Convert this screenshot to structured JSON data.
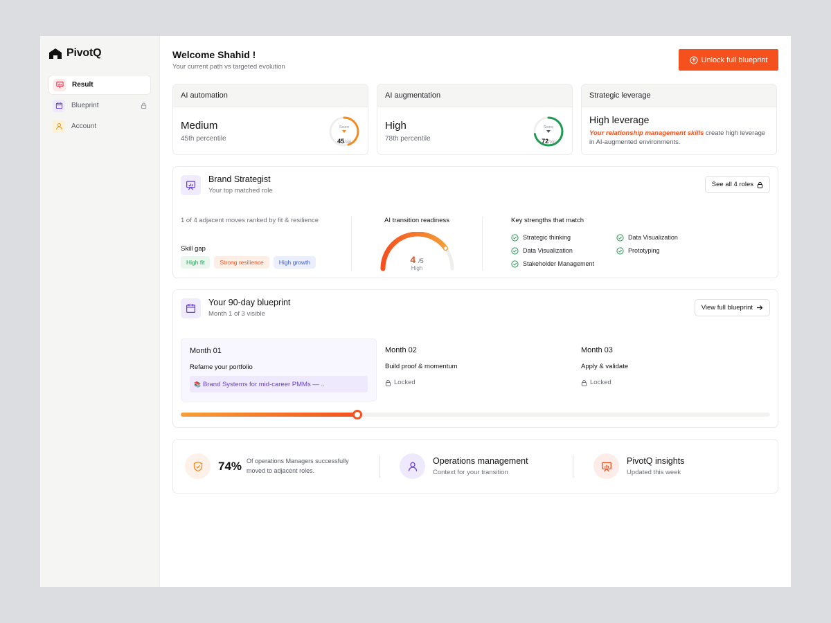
{
  "app": {
    "name": "PivotQ"
  },
  "sidebar": {
    "items": [
      {
        "label": "Result",
        "icon": "presentation-icon",
        "active": true
      },
      {
        "label": "Blueprint",
        "icon": "calendar-icon",
        "locked": true
      },
      {
        "label": "Account",
        "icon": "user-icon"
      }
    ]
  },
  "header": {
    "title": "Welcome Shahid !",
    "subtitle": "Your current path vs targeted evolution",
    "unlock_label": "Unlock full blueprint"
  },
  "stats": [
    {
      "heading": "AI automation",
      "value": "Medium",
      "sub": "45th percentile",
      "score_label": "Score",
      "score": "45",
      "score_max": "/100",
      "score_fraction": 0.45,
      "color": "#f28a1e"
    },
    {
      "heading": "AI augmentation",
      "value": "High",
      "sub": "78th percentile",
      "score_label": "Score",
      "score": "72",
      "score_max": "/100",
      "score_fraction": 0.72,
      "color": "#1f9a52"
    }
  ],
  "leverage": {
    "heading": "Strategic leverage",
    "title": "High leverage",
    "highlight": "Your relationship management skills",
    "rest": " create high leverage in AI-augmented environments."
  },
  "role": {
    "title": "Brand Strategist",
    "subtitle": "Your top matched role",
    "see_all_label": "See all 4 roles",
    "adjacent_text": "1 of 4 adjacent moves ranked by fit & resilience",
    "skill_gap_label": "Skill gap",
    "chips": [
      "High fit",
      "Strong resilience",
      "High growth"
    ],
    "readiness": {
      "title": "AI transition readiness",
      "value": "4",
      "max": "/5",
      "level": "High",
      "fraction": 0.8
    },
    "strengths_title": "Key strengths that match",
    "strengths": [
      "Strategic thinking",
      "Data Visualization",
      "Data Visualization",
      "Prototyping",
      "Stakeholder Management"
    ]
  },
  "blueprint": {
    "title": "Your 90-day blueprint",
    "subtitle": "Month 1 of 3 visible",
    "view_label": "View full blueprint",
    "months": [
      {
        "title": "Month 01",
        "task": "Refame your portfolio",
        "link": "Brand Systems for mid-career PMMs — .."
      },
      {
        "title": "Month 02",
        "task": "Build proof & momentum",
        "status": "Locked"
      },
      {
        "title": "Month 03",
        "task": "Apply & validate",
        "status": "Locked"
      }
    ],
    "progress": 0.3
  },
  "insights": {
    "percent": "74%",
    "percent_text": "Of operations Managers successfully moved to adjacent roles.",
    "ops_title": "Operations management",
    "ops_sub": "Context for your transition",
    "pivot_title": "PivotQ insights",
    "pivot_sub": "Updated this week"
  },
  "colors": {
    "accent": "#f4511e",
    "purple": "#6b3fd4",
    "green": "#1f9a52"
  }
}
